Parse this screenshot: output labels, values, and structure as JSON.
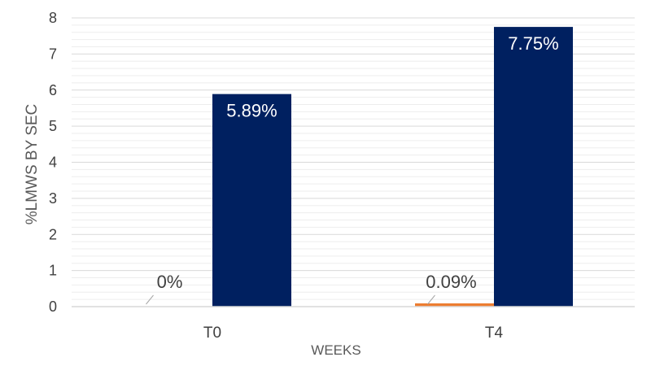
{
  "chart_data": {
    "type": "bar",
    "categories": [
      "T0",
      "T4"
    ],
    "series": [
      {
        "values": [
          0,
          0.09
        ],
        "labels": [
          "0%",
          "0.09%"
        ],
        "color": "#ED7D31"
      },
      {
        "values": [
          5.89,
          7.75
        ],
        "labels": [
          "5.89%",
          "7.75%"
        ],
        "color": "#002060"
      }
    ],
    "xlabel": "WEEKS",
    "ylabel": "%LMWS BY SEC",
    "ylim": [
      0,
      8
    ],
    "yticks": [
      "0",
      "1",
      "2",
      "3",
      "4",
      "5",
      "6",
      "7",
      "8"
    ],
    "grid": true,
    "legend": "none"
  }
}
